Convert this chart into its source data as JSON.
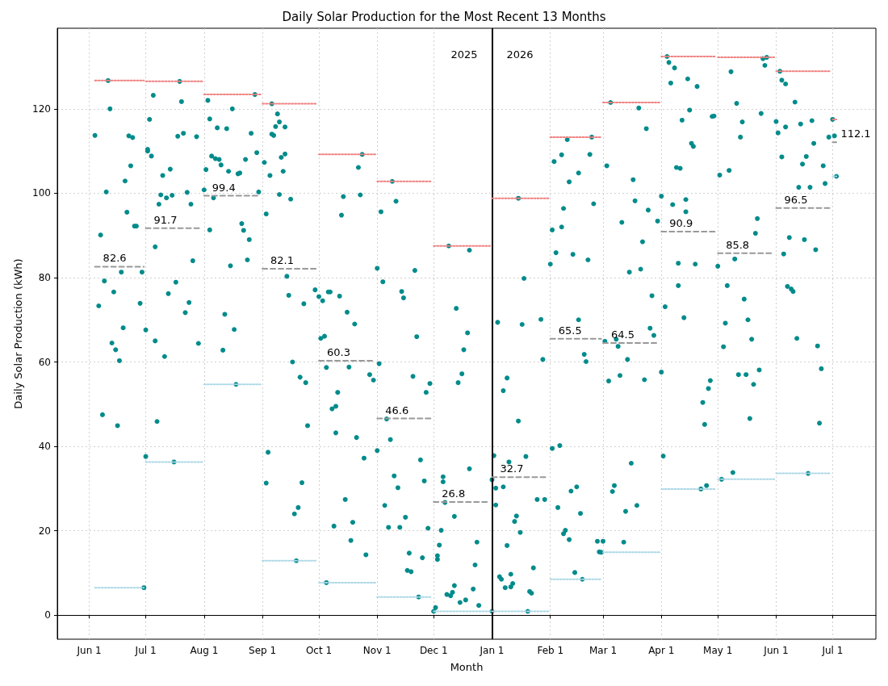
{
  "chart_data": {
    "type": "scatter",
    "title": "Daily Solar Production for the Most Recent 13 Months",
    "xlabel": "Month",
    "ylabel": "Daily Solar Production (kWh)",
    "xlim": [
      "2025-05-15",
      "2026-07-24"
    ],
    "xticks": [
      {
        "value": "2025-06-01",
        "label": "Jun 1"
      },
      {
        "value": "2025-07-01",
        "label": "Jul 1"
      },
      {
        "value": "2025-08-01",
        "label": "Aug 1"
      },
      {
        "value": "2025-09-01",
        "label": "Sep 1"
      },
      {
        "value": "2025-10-01",
        "label": "Oct 1"
      },
      {
        "value": "2025-11-01",
        "label": "Nov 1"
      },
      {
        "value": "2025-12-01",
        "label": "Dec 1"
      },
      {
        "value": "2026-01-01",
        "label": "Jan 1"
      },
      {
        "value": "2026-02-01",
        "label": "Feb 1"
      },
      {
        "value": "2026-03-01",
        "label": "Mar 1"
      },
      {
        "value": "2026-04-01",
        "label": "Apr 1"
      },
      {
        "value": "2026-05-01",
        "label": "May 1"
      },
      {
        "value": "2026-06-01",
        "label": "Jun 1"
      },
      {
        "value": "2026-07-01",
        "label": "Jul 1"
      }
    ],
    "ylim": [
      -5.7,
      139.1
    ],
    "yticks": [
      0,
      20,
      40,
      60,
      80,
      100,
      120
    ],
    "grid": true,
    "marker": "circle",
    "ref_lines": [
      {
        "axis": "x",
        "value": "2026-01-01",
        "color": "#000000",
        "line_style": "solid"
      }
    ],
    "annotations": [
      "2025",
      "2026"
    ],
    "series": [
      {
        "color": "#008b8b",
        "x": [
          "2025-06-04",
          "2025-06-06",
          "2025-06-07",
          "2025-06-08",
          "2025-06-09",
          "2025-06-10",
          "2025-06-11",
          "2025-06-12",
          "2025-06-13",
          "2025-06-14",
          "2025-06-15",
          "2025-06-16",
          "2025-06-17",
          "2025-06-18",
          "2025-06-19",
          "2025-06-20",
          "2025-06-21",
          "2025-06-22",
          "2025-06-23",
          "2025-06-24",
          "2025-06-25",
          "2025-06-26",
          "2025-06-28",
          "2025-06-29",
          "2025-06-30",
          "2025-07-01",
          "2025-07-01",
          "2025-07-02",
          "2025-07-02",
          "2025-07-03",
          "2025-07-04",
          "2025-07-05",
          "2025-07-06",
          "2025-07-06",
          "2025-07-07",
          "2025-07-08",
          "2025-07-09",
          "2025-07-10",
          "2025-07-11",
          "2025-07-12",
          "2025-07-13",
          "2025-07-14",
          "2025-07-15",
          "2025-07-16",
          "2025-07-17",
          "2025-07-18",
          "2025-07-19",
          "2025-07-20",
          "2025-07-21",
          "2025-07-22",
          "2025-07-23",
          "2025-07-24",
          "2025-07-25",
          "2025-07-26",
          "2025-07-28",
          "2025-07-29",
          "2025-08-01",
          "2025-08-02",
          "2025-08-03",
          "2025-08-04",
          "2025-08-04",
          "2025-08-05",
          "2025-08-06",
          "2025-08-07",
          "2025-08-08",
          "2025-08-09",
          "2025-08-10",
          "2025-08-11",
          "2025-08-12",
          "2025-08-13",
          "2025-08-14",
          "2025-08-15",
          "2025-08-16",
          "2025-08-17",
          "2025-08-18",
          "2025-08-19",
          "2025-08-20",
          "2025-08-21",
          "2025-08-22",
          "2025-08-23",
          "2025-08-24",
          "2025-08-25",
          "2025-08-26",
          "2025-08-28",
          "2025-08-29",
          "2025-08-30",
          "2025-09-02",
          "2025-09-03",
          "2025-09-03",
          "2025-09-04",
          "2025-09-05",
          "2025-09-06",
          "2025-09-06",
          "2025-09-07",
          "2025-09-08",
          "2025-09-09",
          "2025-09-10",
          "2025-09-10",
          "2025-09-11",
          "2025-09-12",
          "2025-09-13",
          "2025-09-13",
          "2025-09-14",
          "2025-09-15",
          "2025-09-16",
          "2025-09-17",
          "2025-09-18",
          "2025-09-19",
          "2025-09-20",
          "2025-09-21",
          "2025-09-22",
          "2025-09-23",
          "2025-09-24",
          "2025-09-25",
          "2025-09-29",
          "2025-10-01",
          "2025-10-02",
          "2025-10-03",
          "2025-10-04",
          "2025-10-05",
          "2025-10-05",
          "2025-10-06",
          "2025-10-07",
          "2025-10-08",
          "2025-10-09",
          "2025-10-10",
          "2025-10-10",
          "2025-10-11",
          "2025-10-12",
          "2025-10-13",
          "2025-10-14",
          "2025-10-15",
          "2025-10-16",
          "2025-10-17",
          "2025-10-18",
          "2025-10-19",
          "2025-10-20",
          "2025-10-21",
          "2025-10-22",
          "2025-10-23",
          "2025-10-24",
          "2025-10-25",
          "2025-10-26",
          "2025-10-28",
          "2025-10-30",
          "2025-11-01",
          "2025-11-01",
          "2025-11-02",
          "2025-11-03",
          "2025-11-04",
          "2025-11-05",
          "2025-11-06",
          "2025-11-07",
          "2025-11-08",
          "2025-11-09",
          "2025-11-10",
          "2025-11-11",
          "2025-11-12",
          "2025-11-13",
          "2025-11-14",
          "2025-11-15",
          "2025-11-16",
          "2025-11-17",
          "2025-11-18",
          "2025-11-19",
          "2025-11-20",
          "2025-11-21",
          "2025-11-22",
          "2025-11-23",
          "2025-11-24",
          "2025-11-25",
          "2025-11-26",
          "2025-11-27",
          "2025-11-28",
          "2025-11-29",
          "2025-12-01",
          "2025-12-02",
          "2025-12-03",
          "2025-12-03",
          "2025-12-04",
          "2025-12-05",
          "2025-12-06",
          "2025-12-06",
          "2025-12-07",
          "2025-12-08",
          "2025-12-09",
          "2025-12-10",
          "2025-12-11",
          "2025-12-12",
          "2025-12-12",
          "2025-12-13",
          "2025-12-14",
          "2025-12-15",
          "2025-12-16",
          "2025-12-17",
          "2025-12-18",
          "2025-12-19",
          "2025-12-20",
          "2025-12-20",
          "2025-12-22",
          "2025-12-23",
          "2025-12-24",
          "2025-12-25",
          "2026-01-01",
          "2026-01-01",
          "2026-01-02",
          "2026-01-03",
          "2026-01-03",
          "2026-01-04",
          "2026-01-05",
          "2026-01-06",
          "2026-01-07",
          "2026-01-07",
          "2026-01-08",
          "2026-01-09",
          "2026-01-09",
          "2026-01-10",
          "2026-01-11",
          "2026-01-11",
          "2026-01-12",
          "2026-01-13",
          "2026-01-14",
          "2026-01-15",
          "2026-01-15",
          "2026-01-16",
          "2026-01-17",
          "2026-01-18",
          "2026-01-19",
          "2026-01-20",
          "2026-01-21",
          "2026-01-22",
          "2026-01-23",
          "2026-01-25",
          "2026-01-27",
          "2026-01-28",
          "2026-01-29",
          "2026-02-01",
          "2026-02-02",
          "2026-02-02",
          "2026-02-03",
          "2026-02-04",
          "2026-02-05",
          "2026-02-06",
          "2026-02-07",
          "2026-02-07",
          "2026-02-08",
          "2026-02-08",
          "2026-02-09",
          "2026-02-10",
          "2026-02-11",
          "2026-02-11",
          "2026-02-12",
          "2026-02-13",
          "2026-02-14",
          "2026-02-15",
          "2026-02-16",
          "2026-02-16",
          "2026-02-17",
          "2026-02-18",
          "2026-02-19",
          "2026-02-20",
          "2026-02-21",
          "2026-02-22",
          "2026-02-23",
          "2026-02-24",
          "2026-02-26",
          "2026-02-27",
          "2026-02-28",
          "2026-03-01",
          "2026-03-02",
          "2026-03-03",
          "2026-03-04",
          "2026-03-05",
          "2026-03-06",
          "2026-03-07",
          "2026-03-08",
          "2026-03-09",
          "2026-03-10",
          "2026-03-11",
          "2026-03-12",
          "2026-03-13",
          "2026-03-14",
          "2026-03-15",
          "2026-03-16",
          "2026-03-17",
          "2026-03-18",
          "2026-03-19",
          "2026-03-20",
          "2026-03-21",
          "2026-03-22",
          "2026-03-23",
          "2026-03-24",
          "2026-03-25",
          "2026-03-26",
          "2026-03-27",
          "2026-03-28",
          "2026-03-30",
          "2026-04-01",
          "2026-04-01",
          "2026-04-02",
          "2026-04-03",
          "2026-04-04",
          "2026-04-05",
          "2026-04-06",
          "2026-04-07",
          "2026-04-08",
          "2026-04-09",
          "2026-04-10",
          "2026-04-10",
          "2026-04-11",
          "2026-04-12",
          "2026-04-13",
          "2026-04-14",
          "2026-04-14",
          "2026-04-15",
          "2026-04-16",
          "2026-04-17",
          "2026-04-18",
          "2026-04-19",
          "2026-04-20",
          "2026-04-22",
          "2026-04-23",
          "2026-04-24",
          "2026-04-25",
          "2026-04-26",
          "2026-04-27",
          "2026-04-28",
          "2026-04-29",
          "2026-05-01",
          "2026-05-02",
          "2026-05-03",
          "2026-05-04",
          "2026-05-05",
          "2026-05-06",
          "2026-05-07",
          "2026-05-08",
          "2026-05-09",
          "2026-05-10",
          "2026-05-11",
          "2026-05-12",
          "2026-05-13",
          "2026-05-14",
          "2026-05-15",
          "2026-05-16",
          "2026-05-17",
          "2026-05-18",
          "2026-05-19",
          "2026-05-20",
          "2026-05-21",
          "2026-05-22",
          "2026-05-23",
          "2026-05-24",
          "2026-05-25",
          "2026-05-26",
          "2026-05-27",
          "2026-06-01",
          "2026-06-02",
          "2026-06-03",
          "2026-06-04",
          "2026-06-04",
          "2026-06-05",
          "2026-06-06",
          "2026-06-06",
          "2026-06-07",
          "2026-06-08",
          "2026-06-09",
          "2026-06-10",
          "2026-06-11",
          "2026-06-12",
          "2026-06-13",
          "2026-06-14",
          "2026-06-15",
          "2026-06-16",
          "2026-06-17",
          "2026-06-18",
          "2026-06-19",
          "2026-06-20",
          "2026-06-21",
          "2026-06-22",
          "2026-06-23",
          "2026-06-24",
          "2026-06-25",
          "2026-06-26",
          "2026-06-27",
          "2026-06-29",
          "2026-07-01",
          "2026-07-02",
          "2026-07-03"
        ],
        "values": [
          113.7,
          73.3,
          90.1,
          47.5,
          79.2,
          100.3,
          126.7,
          120,
          64.5,
          76.6,
          62.9,
          44.9,
          60.3,
          81.3,
          68.1,
          102.9,
          95.5,
          113.6,
          106.5,
          113.2,
          92.2,
          92.2,
          73.9,
          81.3,
          6.5,
          67.6,
          37.6,
          110,
          110.4,
          117.5,
          108.8,
          123.2,
          87.3,
          65,
          45.9,
          97.4,
          99.6,
          104.2,
          61.3,
          98.9,
          76.2,
          105.7,
          99.5,
          36.3,
          78.9,
          113.5,
          126.5,
          121.7,
          114.2,
          71.7,
          100.2,
          74.1,
          97.4,
          84,
          113.4,
          64.4,
          100.8,
          105.6,
          122,
          117.6,
          91.3,
          108.8,
          98.9,
          108.2,
          115.5,
          108,
          106.7,
          62.8,
          71.3,
          115.3,
          105.2,
          82.8,
          120,
          67.7,
          54.7,
          104.6,
          104.8,
          92.8,
          91.2,
          108,
          84.2,
          89,
          114.2,
          123.4,
          109.6,
          100.3,
          107.3,
          95.1,
          31.3,
          38.6,
          104.2,
          114,
          121.2,
          113.7,
          115.8,
          118.8,
          99.7,
          116.9,
          108.5,
          105.2,
          109.3,
          115.7,
          80.3,
          75.8,
          98.6,
          60,
          24,
          12.9,
          25.5,
          56.4,
          31.4,
          73.8,
          55.1,
          44.9,
          77.1,
          75.5,
          65.6,
          74.5,
          66.1,
          7.7,
          58.7,
          76.6,
          76.6,
          48.9,
          21.1,
          49.5,
          43.2,
          52.8,
          75.6,
          94.8,
          99.2,
          27.4,
          71.8,
          58.8,
          17.7,
          22,
          69,
          42.1,
          106.1,
          99.6,
          109.2,
          37.2,
          14.3,
          57,
          55.7,
          82.2,
          39,
          59.6,
          95.6,
          79,
          26,
          46.5,
          20.8,
          41.6,
          102.8,
          33,
          98.1,
          30.2,
          20.8,
          76.7,
          75.2,
          23.2,
          10.6,
          14.7,
          10.3,
          56.6,
          81.7,
          66,
          4.3,
          36.8,
          13.6,
          31.8,
          52.8,
          20.6,
          54.9,
          0.9,
          1.8,
          14.1,
          13.2,
          16.6,
          20.1,
          32.8,
          31.6,
          26.7,
          4.9,
          87.5,
          4.6,
          5.4,
          7,
          23.4,
          72.7,
          55.1,
          3,
          57.2,
          62.9,
          3.6,
          66.9,
          34.7,
          86.5,
          6.2,
          11.9,
          17.3,
          2.3,
          0.9,
          32.1,
          37.8,
          26.1,
          30.1,
          69.4,
          9.1,
          8.5,
          53.2,
          30.4,
          6.5,
          16.5,
          56.2,
          36.3,
          6.7,
          9.7,
          7.5,
          22.2,
          23.5,
          46,
          98.8,
          19.6,
          68.9,
          79.8,
          37.6,
          0.9,
          5.6,
          5.2,
          11.2,
          27.4,
          70.1,
          60.6,
          27.4,
          83.2,
          91.3,
          39.5,
          107.5,
          85.9,
          25.5,
          40.2,
          109.1,
          92,
          96.4,
          19.3,
          20.1,
          112.7,
          102.7,
          17.9,
          29.4,
          85.5,
          10.1,
          30.4,
          70,
          104.8,
          24.1,
          8.5,
          61.8,
          60.1,
          84.2,
          109.2,
          113.3,
          97.5,
          17.5,
          15,
          14.9,
          17.5,
          64.9,
          106.5,
          55.5,
          121.5,
          29.3,
          30.7,
          65.4,
          63.7,
          56.8,
          93.1,
          17.3,
          24.6,
          60.6,
          81.3,
          36,
          103.2,
          98.2,
          26,
          120.2,
          82,
          88.5,
          55.8,
          115.3,
          96,
          68,
          75.7,
          66.3,
          93.4,
          99.3,
          57.6,
          37.7,
          73.1,
          132.4,
          131,
          126.1,
          97.3,
          129.7,
          106.1,
          78.1,
          83.4,
          105.9,
          117.3,
          70.5,
          98.5,
          95.6,
          127.1,
          119.7,
          111.8,
          111.1,
          83.2,
          125.3,
          29.9,
          50.4,
          45.2,
          30.7,
          53.7,
          55.6,
          118.2,
          118.3,
          82.7,
          104.3,
          32.2,
          63.6,
          69.2,
          78.1,
          105.4,
          128.8,
          33.8,
          84.4,
          121.3,
          57,
          113.3,
          116.9,
          74.9,
          57,
          70,
          46.6,
          65.4,
          54.7,
          90.5,
          94,
          58.1,
          118.9,
          131.9,
          130.3,
          132.2,
          117,
          114.3,
          128.9,
          126.8,
          108.6,
          85.6,
          115.7,
          125.9,
          77.9,
          89.5,
          77.3,
          76.7,
          121.6,
          65.6,
          101.4,
          116.4,
          106.9,
          89,
          108.7,
          33.6,
          101.4,
          117.2,
          111.8,
          86.6,
          63.8,
          45.5,
          58.4,
          106.5,
          102.3,
          113.3,
          117.5,
          113.6,
          104
        ]
      },
      {
        "type": "line",
        "color": "#999999",
        "line_style": "dashed",
        "marker": "none",
        "x": [
          "2025-06-04",
          "2025-06-30",
          null,
          "2025-07-01",
          "2025-07-31",
          null,
          "2025-08-01",
          "2025-08-31",
          null,
          "2025-09-01",
          "2025-09-30",
          null,
          "2025-10-01",
          "2025-10-31",
          null,
          "2025-11-01",
          "2025-11-30",
          null,
          "2025-12-01",
          "2025-12-31",
          null,
          "2026-01-01",
          "2026-01-31",
          null,
          "2026-02-01",
          "2026-02-28",
          null,
          "2026-03-01",
          "2026-03-31",
          null,
          "2026-04-01",
          "2026-04-30",
          null,
          "2026-05-01",
          "2026-05-31",
          null,
          "2026-06-01",
          "2026-06-30",
          null,
          "2026-07-01",
          "2026-07-03"
        ],
        "values": [
          82.6,
          82.6,
          null,
          91.7,
          91.7,
          null,
          99.4,
          99.4,
          null,
          82.1,
          82.1,
          null,
          60.3,
          60.3,
          null,
          46.6,
          46.6,
          null,
          26.8,
          26.8,
          null,
          32.7,
          32.7,
          null,
          65.5,
          65.5,
          null,
          64.5,
          64.5,
          null,
          90.9,
          90.9,
          null,
          85.8,
          85.8,
          null,
          96.5,
          96.5,
          null,
          112.1,
          112.1
        ],
        "value_labels": [
          "82.6",
          null,
          null,
          "91.7",
          null,
          null,
          "99.4",
          null,
          null,
          "82.1",
          null,
          null,
          "60.3",
          null,
          null,
          "46.6",
          null,
          null,
          "26.8",
          null,
          null,
          "32.7",
          null,
          null,
          "65.5",
          null,
          null,
          "64.5",
          null,
          null,
          "90.9",
          null,
          null,
          "85.8",
          null,
          null,
          "96.5",
          null,
          null,
          "112.1",
          null
        ]
      },
      {
        "type": "line",
        "color": "#f08080",
        "line_style": "dotted",
        "marker": "none",
        "x": [
          "2025-06-04",
          "2025-06-30",
          null,
          "2025-07-01",
          "2025-07-31",
          null,
          "2025-08-01",
          "2025-08-31",
          null,
          "2025-09-01",
          "2025-09-30",
          null,
          "2025-10-01",
          "2025-10-31",
          null,
          "2025-11-01",
          "2025-11-30",
          null,
          "2025-12-01",
          "2025-12-31",
          null,
          "2026-01-01",
          "2026-01-31",
          null,
          "2026-02-01",
          "2026-02-28",
          null,
          "2026-03-01",
          "2026-03-31",
          null,
          "2026-04-01",
          "2026-04-30",
          null,
          "2026-05-01",
          "2026-05-31",
          null,
          "2026-06-01",
          "2026-06-30",
          null,
          "2026-07-01",
          "2026-07-03"
        ],
        "values": [
          126.7,
          126.7,
          null,
          126.5,
          126.5,
          null,
          123.4,
          123.4,
          null,
          121.2,
          121.2,
          null,
          109.2,
          109.2,
          null,
          102.8,
          102.8,
          null,
          87.5,
          87.5,
          null,
          98.8,
          98.8,
          null,
          113.3,
          113.3,
          null,
          121.5,
          121.5,
          null,
          132.4,
          132.4,
          null,
          132.2,
          132.2,
          null,
          128.9,
          128.9,
          null,
          117.5,
          117.5
        ]
      },
      {
        "type": "line",
        "color": "#add8e6",
        "line_style": "dotted",
        "marker": "none",
        "x": [
          "2025-06-04",
          "2025-06-30",
          null,
          "2025-07-01",
          "2025-07-31",
          null,
          "2025-08-01",
          "2025-08-31",
          null,
          "2025-09-01",
          "2025-09-30",
          null,
          "2025-10-01",
          "2025-10-31",
          null,
          "2025-11-01",
          "2025-11-30",
          null,
          "2025-12-01",
          "2025-12-31",
          null,
          "2026-01-01",
          "2026-01-31",
          null,
          "2026-02-01",
          "2026-02-28",
          null,
          "2026-03-01",
          "2026-03-31",
          null,
          "2026-04-01",
          "2026-04-30",
          null,
          "2026-05-01",
          "2026-05-31",
          null,
          "2026-06-01",
          "2026-06-30",
          null,
          "2026-07-01",
          "2026-07-03"
        ],
        "values": [
          6.5,
          6.5,
          null,
          36.3,
          36.3,
          null,
          54.7,
          54.7,
          null,
          12.9,
          12.9,
          null,
          7.7,
          7.7,
          null,
          4.3,
          4.3,
          null,
          0.9,
          0.9,
          null,
          0.9,
          0.9,
          null,
          8.5,
          8.5,
          null,
          14.9,
          14.9,
          null,
          29.9,
          29.9,
          null,
          32.2,
          32.2,
          null,
          33.6,
          33.6,
          null,
          104,
          104
        ]
      }
    ]
  }
}
